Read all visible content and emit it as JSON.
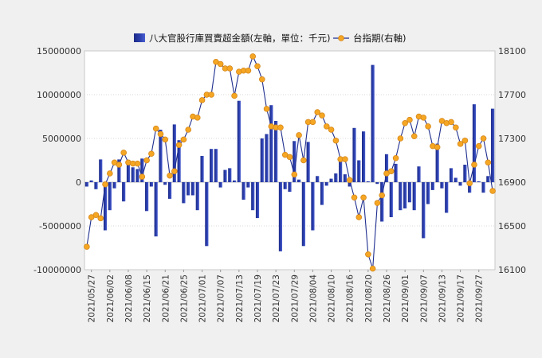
{
  "chart_data": {
    "type": "bar+line",
    "title": "",
    "legend": {
      "position": "top",
      "bar_label": "八大官股行庫買賣超金額(左軸，單位：千元)",
      "line_label": "台指期(右軸)"
    },
    "left_axis": {
      "range": [
        -10000000,
        15000000
      ],
      "ticks": [
        "15000000",
        "10000000",
        "5000000",
        "0",
        "-5000000",
        "-10000000"
      ]
    },
    "right_axis": {
      "range": [
        16100,
        18100
      ],
      "ticks": [
        "18100",
        "17700",
        "17300",
        "16900",
        "16500",
        "16100"
      ]
    },
    "x_tick_labels": [
      "2021/05/27",
      "2021/06/02",
      "2021/06/08",
      "2021/06/15",
      "2021/06/21",
      "2021/06/25",
      "2021/07/01",
      "2021/07/07",
      "2021/07/13",
      "2021/07/19",
      "2021/07/23",
      "2021/07/29",
      "2021/08/04",
      "2021/08/10",
      "2021/08/16",
      "2021/08/20",
      "2021/08/26",
      "2021/09/01",
      "2021/09/07",
      "2021/09/13",
      "2021/09/17",
      "2021/09/27"
    ],
    "grid": true,
    "colors": {
      "bar": "#2b3fae",
      "line": "#1f2f8f",
      "marker_fill": "#f5a623",
      "marker_stroke": "#d4861a",
      "plot_bg": "#ffffff",
      "page_bg": "#f0f0f0"
    },
    "bar_series": {
      "name": "八大官股行庫買賣超金額(左軸，單位：千元)",
      "values": [
        -500000,
        200000,
        -800000,
        2600000,
        -5500000,
        -3200000,
        -700000,
        2600000,
        -2200000,
        2100000,
        1700000,
        1500000,
        2700000,
        -3300000,
        -500000,
        -6200000,
        6000000,
        -300000,
        -1900000,
        6600000,
        4800000,
        -2400000,
        -1500000,
        -1500000,
        -3200000,
        3000000,
        -7300000,
        3800000,
        3800000,
        -600000,
        1400000,
        1600000,
        200000,
        9300000,
        -2000000,
        -600000,
        -3200000,
        -4100000,
        5000000,
        5500000,
        8800000,
        7000000,
        -7900000,
        -800000,
        -1100000,
        4700000,
        300000,
        -7300000,
        4600000,
        -5500000,
        700000,
        -2600000,
        -400000,
        400000,
        1000000,
        2900000,
        900000,
        -500000,
        6200000,
        2500000,
        5800000,
        100000,
        13400000,
        -200000,
        -4500000,
        3200000,
        -4000000,
        2100000,
        -3200000,
        -3000000,
        -2300000,
        -3200000,
        1800000,
        -6400000,
        -2500000,
        -900000,
        4400000,
        -700000,
        -3500000,
        1600000,
        500000,
        -400000,
        2000000,
        -1200000,
        8900000,
        100000,
        -1200000,
        700000,
        8400000
      ]
    },
    "line_series": {
      "name": "台指期(右軸)",
      "values": [
        16310,
        16580,
        16600,
        16570,
        16880,
        16980,
        17080,
        17060,
        17170,
        17080,
        17070,
        17070,
        16950,
        17100,
        17160,
        17390,
        17340,
        17290,
        16960,
        17000,
        17240,
        17290,
        17380,
        17500,
        17490,
        17650,
        17700,
        17700,
        18000,
        17980,
        17940,
        17940,
        17690,
        17910,
        17920,
        17920,
        18050,
        17960,
        17840,
        17570,
        17410,
        17400,
        17400,
        17150,
        17130,
        16970,
        17330,
        17100,
        17450,
        17450,
        17540,
        17510,
        17410,
        17380,
        17280,
        17110,
        17110,
        16920,
        16760,
        16580,
        16760,
        16240,
        16110,
        16710,
        16780,
        16980,
        17000,
        17120,
        17300,
        17440,
        17470,
        17320,
        17500,
        17490,
        17410,
        17230,
        17220,
        17460,
        17440,
        17450,
        17400,
        17250,
        17280,
        16890,
        17060,
        17230,
        17300,
        17080,
        16820
      ]
    }
  }
}
